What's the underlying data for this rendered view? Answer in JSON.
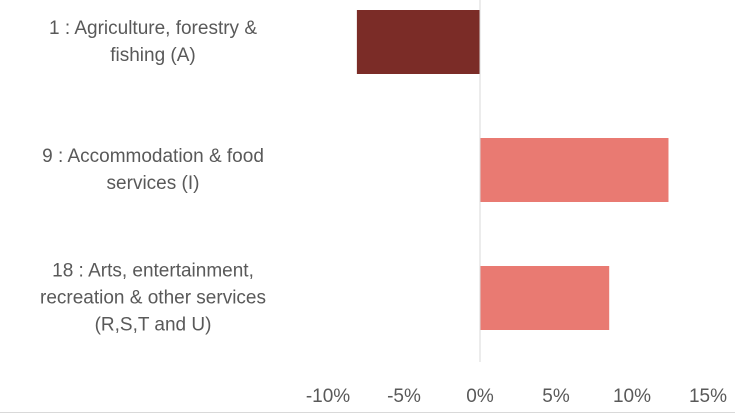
{
  "chart_data": {
    "type": "barh",
    "categories": [
      "1 : Agriculture, forestry &\nfishing (A)",
      "9 : Accommodation & food\nservices (I)",
      "18 : Arts, entertainment,\nrecreation & other services\n(R,S,T and U)"
    ],
    "values": [
      -8.1,
      12.4,
      8.5
    ],
    "colors": [
      "#7b2c27",
      "#e97a72",
      "#e97a72"
    ],
    "xlim": [
      -10,
      15
    ],
    "xticks": [
      {
        "value": -10,
        "label": "-10%"
      },
      {
        "value": -5,
        "label": "-5%"
      },
      {
        "value": 0,
        "label": "0%"
      },
      {
        "value": 5,
        "label": "5%"
      },
      {
        "value": 10,
        "label": "10%"
      },
      {
        "value": 15,
        "label": "15%"
      }
    ]
  }
}
